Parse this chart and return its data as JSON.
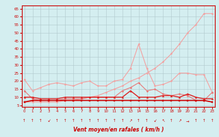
{
  "x": [
    0,
    1,
    2,
    3,
    4,
    5,
    6,
    7,
    8,
    9,
    10,
    11,
    12,
    13,
    14,
    15,
    16,
    17,
    18,
    19,
    20,
    21,
    22,
    23
  ],
  "series": [
    {
      "name": "line1_light_bumpy",
      "color": "#f4a0a0",
      "linewidth": 0.8,
      "marker": "o",
      "markersize": 1.5,
      "y": [
        21,
        14,
        16,
        18,
        19,
        18,
        17,
        19,
        20,
        17,
        17,
        20,
        21,
        28,
        43,
        28,
        17,
        18,
        20,
        25,
        25,
        24,
        24,
        13
      ]
    },
    {
      "name": "line2_light_diagonal",
      "color": "#f4a0a0",
      "linewidth": 0.8,
      "marker": "o",
      "markersize": 1.5,
      "y": [
        7,
        7,
        7,
        7,
        7,
        8,
        8,
        9,
        10,
        11,
        13,
        15,
        17,
        20,
        22,
        25,
        28,
        32,
        37,
        43,
        50,
        55,
        62,
        62
      ]
    },
    {
      "name": "line3_medium_pink",
      "color": "#e87878",
      "linewidth": 0.8,
      "marker": "D",
      "markersize": 1.5,
      "y": [
        14,
        9,
        8,
        8,
        8,
        9,
        9,
        9,
        10,
        10,
        10,
        10,
        14,
        16,
        19,
        14,
        15,
        12,
        11,
        12,
        11,
        8,
        8,
        13
      ]
    },
    {
      "name": "line4_dark_red",
      "color": "#dd2222",
      "linewidth": 1.0,
      "marker": "^",
      "markersize": 1.8,
      "y": [
        10,
        10,
        9,
        9,
        9,
        10,
        10,
        10,
        10,
        10,
        10,
        10,
        10,
        14,
        10,
        10,
        10,
        11,
        11,
        10,
        12,
        10,
        9,
        9
      ]
    },
    {
      "name": "line5_flat_dark",
      "color": "#cc0000",
      "linewidth": 1.2,
      "marker": "s",
      "markersize": 1.5,
      "y": [
        7,
        8,
        8,
        8,
        8,
        8,
        8,
        8,
        8,
        8,
        8,
        8,
        8,
        8,
        8,
        8,
        8,
        8,
        8,
        8,
        8,
        8,
        8,
        7
      ]
    }
  ],
  "xlabel": "Vent moyen/en rafales ( km/h )",
  "ylim": [
    4,
    67
  ],
  "xlim": [
    -0.3,
    23.3
  ],
  "yticks": [
    5,
    10,
    15,
    20,
    25,
    30,
    35,
    40,
    45,
    50,
    55,
    60,
    65
  ],
  "xticks": [
    0,
    1,
    2,
    3,
    4,
    5,
    6,
    7,
    8,
    9,
    10,
    11,
    12,
    13,
    14,
    15,
    16,
    17,
    18,
    19,
    20,
    21,
    22,
    23
  ],
  "bg_color": "#d4eef0",
  "grid_color": "#b0c8cc",
  "axis_color": "#cc0000",
  "tick_color": "#cc0000",
  "label_color": "#cc0000",
  "arrow_symbols": [
    "↑",
    "↑",
    "↑",
    "↙",
    "↑",
    "↑",
    "↑",
    "↑",
    "↑",
    "↑",
    "↑",
    "↑",
    "↑",
    "↗",
    "↑",
    "↑",
    "↙",
    "↖",
    "↑",
    "↗",
    "→",
    "↑",
    "↑",
    "↑"
  ]
}
